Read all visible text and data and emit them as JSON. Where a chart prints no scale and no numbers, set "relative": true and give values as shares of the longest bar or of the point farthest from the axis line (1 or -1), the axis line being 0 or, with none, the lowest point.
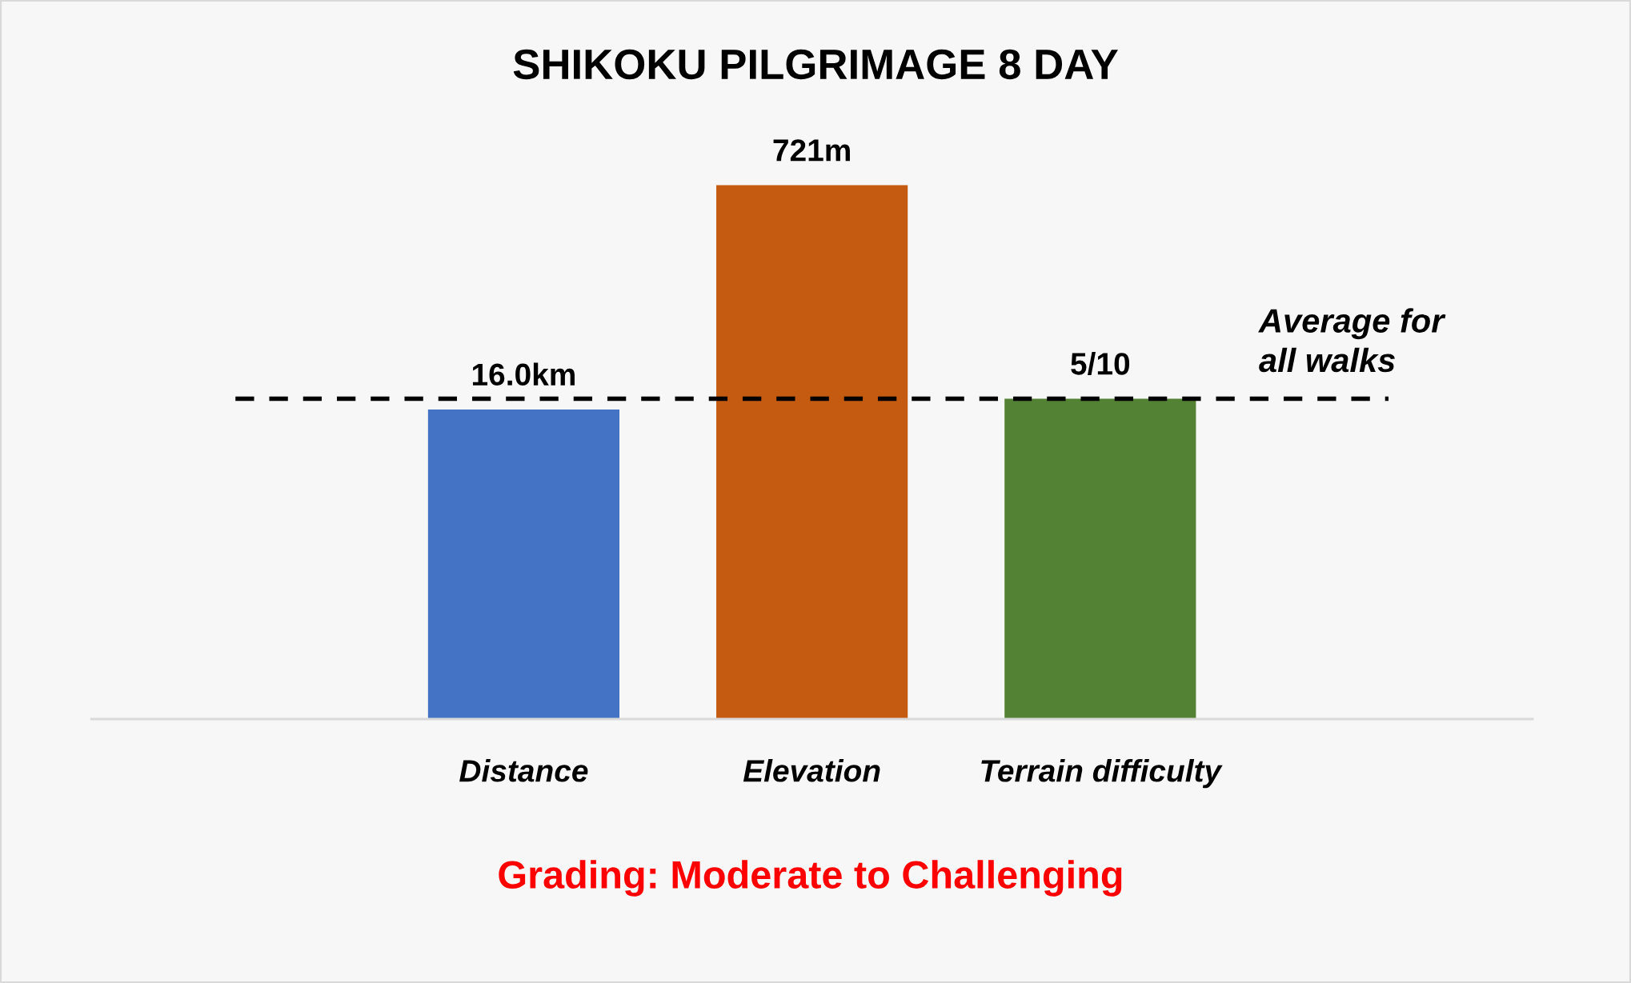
{
  "chart_data": {
    "type": "bar",
    "title": "SHIKOKU PILGRIMAGE 8 DAY",
    "categories": [
      "Distance",
      "Elevation",
      "Terrain difficulty"
    ],
    "values": [
      0.58,
      1,
      0.6
    ],
    "colors": [
      "#4472c4",
      "#c55a11",
      "#548235"
    ],
    "relative": true,
    "ref_lines": [
      {
        "axis": "y",
        "value": 0.6,
        "label": "Average for\nall walks",
        "color": "#000000",
        "line_style": "dashed"
      }
    ],
    "annotations": [
      {
        "text": "16.0km",
        "x": "Distance",
        "y": 0.58
      },
      {
        "text": "721m",
        "x": "Elevation",
        "y": 1
      },
      {
        "text": "5/10",
        "x": "Terrain difficulty",
        "y": 0.6
      },
      "Grading: Moderate to Challenging"
    ],
    "grid": false,
    "legend": false,
    "tick_labels": "x"
  }
}
